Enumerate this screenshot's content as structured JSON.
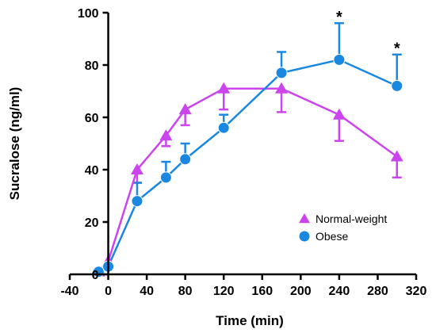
{
  "chart_data": {
    "type": "line",
    "xlabel": "Time (min)",
    "ylabel": "Sucralose (ng/ml)",
    "xlim": [
      -40,
      320
    ],
    "ylim": [
      0,
      100
    ],
    "xticks": [
      -40,
      0,
      40,
      80,
      120,
      160,
      200,
      240,
      280,
      320
    ],
    "yticks": [
      0,
      20,
      40,
      60,
      80,
      100
    ],
    "grid": false,
    "legend_position": "bottom-right",
    "series": [
      {
        "name": "Normal-weight",
        "color": "#cc44ee",
        "marker": "triangle",
        "x": [
          -10,
          0,
          30,
          60,
          80,
          120,
          180,
          240,
          300
        ],
        "y": [
          1,
          5,
          40,
          53,
          63,
          71,
          71,
          61,
          45
        ],
        "err": [
          0,
          0,
          5,
          4,
          6,
          8,
          9,
          10,
          8
        ]
      },
      {
        "name": "Obese",
        "color": "#1a88e0",
        "marker": "circle",
        "x": [
          -10,
          0,
          30,
          60,
          80,
          120,
          180,
          240,
          300
        ],
        "y": [
          1,
          3,
          28,
          37,
          44,
          56,
          77,
          82,
          72
        ],
        "err": [
          0,
          0,
          7,
          6,
          6,
          5,
          8,
          14,
          12
        ]
      }
    ],
    "annotations": [
      {
        "text": "*",
        "x": 240,
        "y": 100
      },
      {
        "text": "*",
        "x": 300,
        "y": 88
      }
    ]
  }
}
